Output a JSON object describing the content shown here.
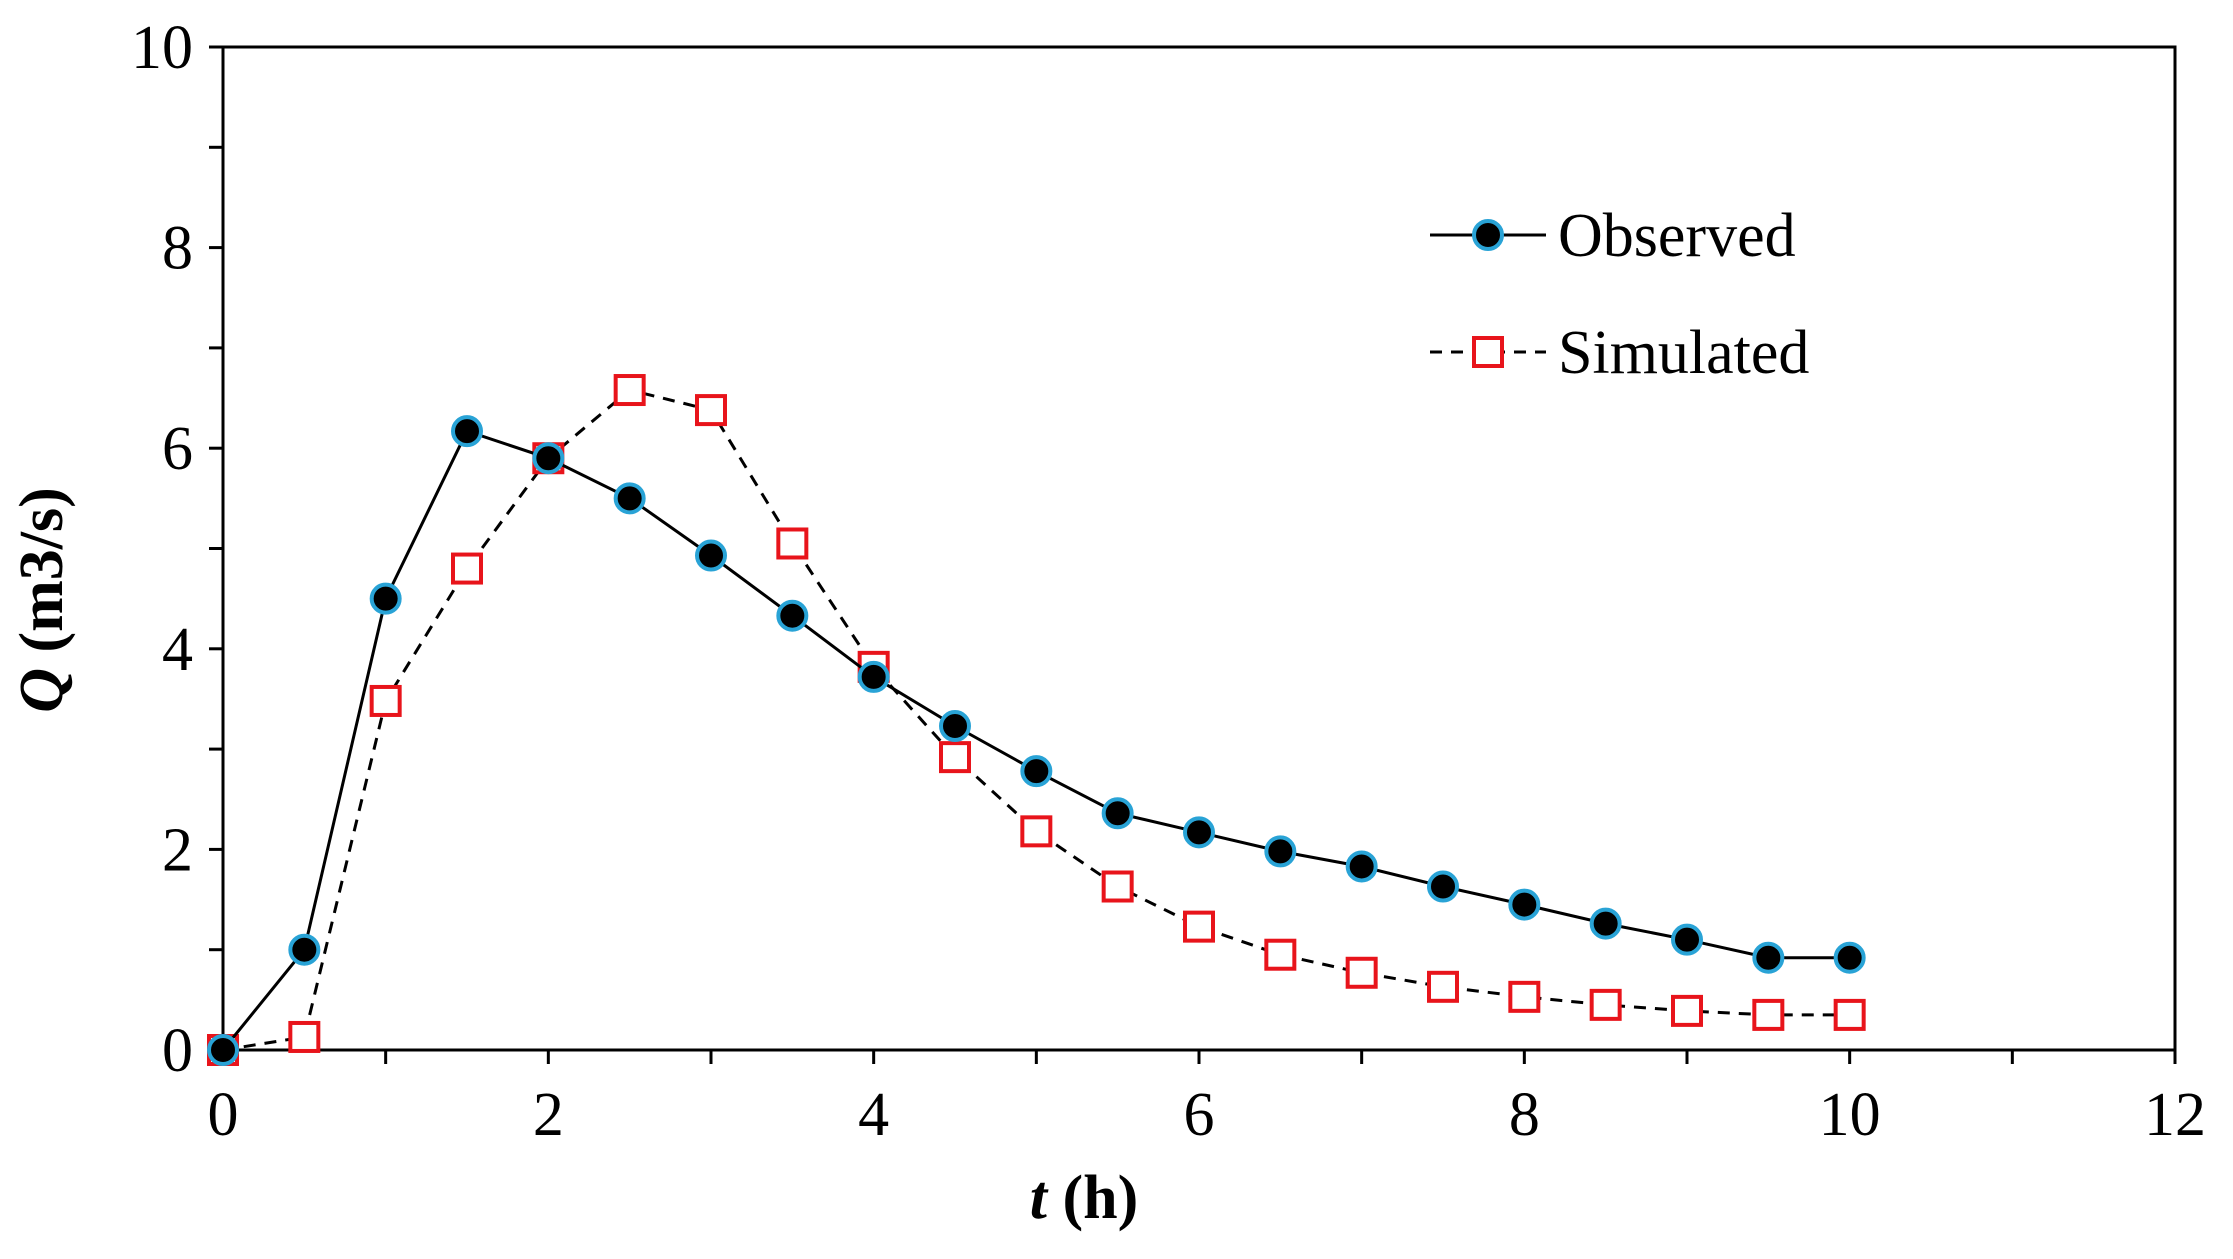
{
  "chart_data": {
    "type": "line",
    "title": "",
    "xlabel_var": "t",
    "xlabel_unit": " (h)",
    "ylabel_var": "Q",
    "ylabel_unit": " (m3/s)",
    "xlim": [
      0,
      12
    ],
    "ylim": [
      0,
      10
    ],
    "xticks": [
      0,
      2,
      4,
      6,
      8,
      10,
      12
    ],
    "yticks": [
      0,
      2,
      4,
      6,
      8,
      10
    ],
    "x_minor_step": 1,
    "y_minor_step": 1,
    "grid": false,
    "legend_position": "top-right",
    "x": [
      0,
      0.5,
      1,
      1.5,
      2,
      2.5,
      3,
      3.5,
      4,
      4.5,
      5,
      5.5,
      6,
      6.5,
      7,
      7.5,
      8,
      8.5,
      9,
      9.5,
      10
    ],
    "series": [
      {
        "name": "Observed",
        "style": "solid",
        "marker": "circle",
        "line_color": "#000000",
        "marker_fill": "#000000",
        "marker_edge": "#29a3d6",
        "values": [
          0.0,
          1.0,
          4.5,
          6.17,
          5.9,
          5.5,
          4.93,
          4.33,
          3.72,
          3.23,
          2.78,
          2.36,
          2.17,
          1.98,
          1.83,
          1.63,
          1.45,
          1.26,
          1.1,
          0.92,
          0.92
        ]
      },
      {
        "name": "Simulated",
        "style": "dashed",
        "marker": "square",
        "line_color": "#000000",
        "marker_fill": "#ffffff",
        "marker_edge": "#e8141b",
        "values": [
          0.0,
          0.13,
          3.48,
          4.8,
          5.9,
          6.58,
          6.38,
          5.05,
          3.82,
          2.92,
          2.18,
          1.63,
          1.23,
          0.95,
          0.77,
          0.63,
          0.53,
          0.45,
          0.39,
          0.35,
          0.35
        ]
      }
    ]
  }
}
